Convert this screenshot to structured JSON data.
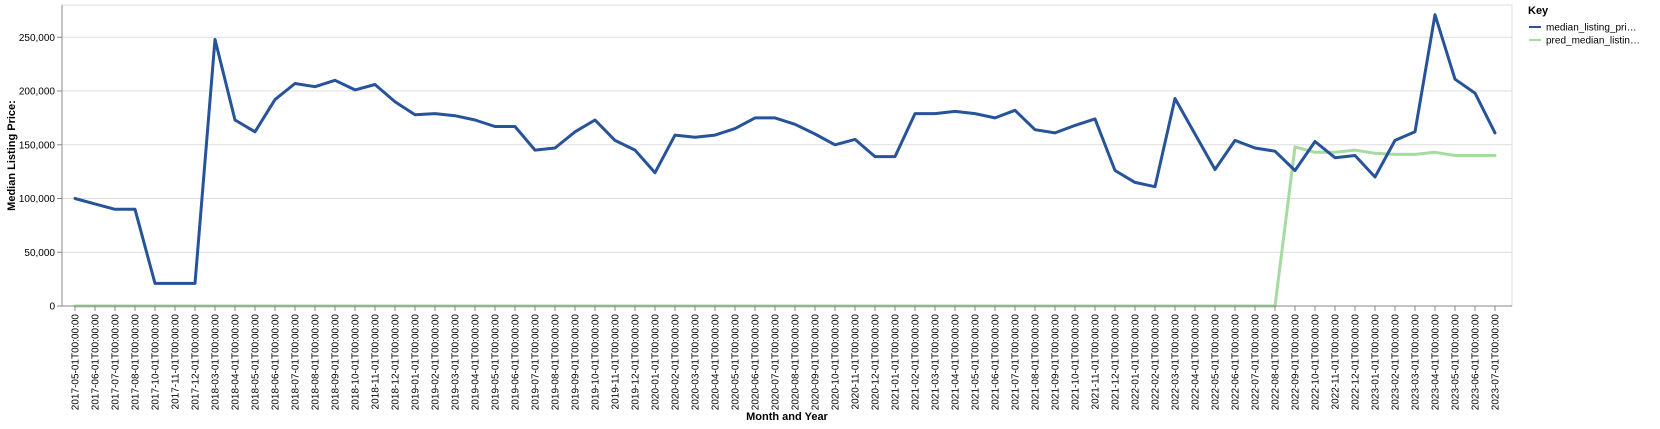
{
  "chart_data": {
    "type": "line",
    "xlabel": "Month and Year",
    "ylabel": "Median Listing Price:",
    "ylim": [
      0,
      280000
    ],
    "yticks": [
      0,
      50000,
      100000,
      150000,
      200000,
      250000
    ],
    "ytick_labels": [
      "0",
      "50,000",
      "100,000",
      "150,000",
      "200,000",
      "250,000"
    ],
    "grid": true,
    "legend": {
      "title": "Key",
      "placement": "top-right"
    },
    "categories": [
      "2017-05-01T00:00:00",
      "2017-06-01T00:00:00",
      "2017-07-01T00:00:00",
      "2017-08-01T00:00:00",
      "2017-10-01T00:00:00",
      "2017-11-01T00:00:00",
      "2017-12-01T00:00:00",
      "2018-03-01T00:00:00",
      "2018-04-01T00:00:00",
      "2018-05-01T00:00:00",
      "2018-06-01T00:00:00",
      "2018-07-01T00:00:00",
      "2018-08-01T00:00:00",
      "2018-09-01T00:00:00",
      "2018-10-01T00:00:00",
      "2018-11-01T00:00:00",
      "2018-12-01T00:00:00",
      "2019-01-01T00:00:00",
      "2019-02-01T00:00:00",
      "2019-03-01T00:00:00",
      "2019-04-01T00:00:00",
      "2019-05-01T00:00:00",
      "2019-06-01T00:00:00",
      "2019-07-01T00:00:00",
      "2019-08-01T00:00:00",
      "2019-09-01T00:00:00",
      "2019-10-01T00:00:00",
      "2019-11-01T00:00:00",
      "2019-12-01T00:00:00",
      "2020-01-01T00:00:00",
      "2020-02-01T00:00:00",
      "2020-03-01T00:00:00",
      "2020-04-01T00:00:00",
      "2020-05-01T00:00:00",
      "2020-06-01T00:00:00",
      "2020-07-01T00:00:00",
      "2020-08-01T00:00:00",
      "2020-09-01T00:00:00",
      "2020-10-01T00:00:00",
      "2020-11-01T00:00:00",
      "2020-12-01T00:00:00",
      "2021-01-01T00:00:00",
      "2021-02-01T00:00:00",
      "2021-03-01T00:00:00",
      "2021-04-01T00:00:00",
      "2021-05-01T00:00:00",
      "2021-06-01T00:00:00",
      "2021-07-01T00:00:00",
      "2021-08-01T00:00:00",
      "2021-09-01T00:00:00",
      "2021-10-01T00:00:00",
      "2021-11-01T00:00:00",
      "2021-12-01T00:00:00",
      "2022-01-01T00:00:00",
      "2022-02-01T00:00:00",
      "2022-03-01T00:00:00",
      "2022-04-01T00:00:00",
      "2022-05-01T00:00:00",
      "2022-06-01T00:00:00",
      "2022-07-01T00:00:00",
      "2022-08-01T00:00:00",
      "2022-09-01T00:00:00",
      "2022-10-01T00:00:00",
      "2022-11-01T00:00:00",
      "2022-12-01T00:00:00",
      "2023-01-01T00:00:00",
      "2023-02-01T00:00:00",
      "2023-03-01T00:00:00",
      "2023-04-01T00:00:00",
      "2023-05-01T00:00:00",
      "2023-06-01T00:00:00",
      "2023-07-01T00:00:00"
    ],
    "series": [
      {
        "name": "median_listing_pri…",
        "color": "#26539a",
        "values": [
          100000,
          95000,
          90000,
          90000,
          21000,
          21000,
          21000,
          248000,
          173000,
          162000,
          192000,
          207000,
          204000,
          210000,
          201000,
          206000,
          190000,
          178000,
          179000,
          177000,
          173000,
          167000,
          167000,
          145000,
          147000,
          162000,
          173000,
          154000,
          145000,
          124000,
          159000,
          157000,
          159000,
          165000,
          175000,
          175000,
          169000,
          160000,
          150000,
          155000,
          139000,
          139000,
          179000,
          179000,
          181000,
          179000,
          175000,
          182000,
          164000,
          161000,
          168000,
          174000,
          126000,
          115000,
          111000,
          193000,
          160000,
          127000,
          154000,
          147000,
          144000,
          126000,
          153000,
          138000,
          140000,
          120000,
          154000,
          162000,
          271000,
          211000,
          198000,
          161000
        ]
      },
      {
        "name": "pred_median_listin…",
        "color": "#a6dba0",
        "values": [
          0,
          0,
          0,
          0,
          0,
          0,
          0,
          0,
          0,
          0,
          0,
          0,
          0,
          0,
          0,
          0,
          0,
          0,
          0,
          0,
          0,
          0,
          0,
          0,
          0,
          0,
          0,
          0,
          0,
          0,
          0,
          0,
          0,
          0,
          0,
          0,
          0,
          0,
          0,
          0,
          0,
          0,
          0,
          0,
          0,
          0,
          0,
          0,
          0,
          0,
          0,
          0,
          0,
          0,
          0,
          0,
          0,
          0,
          0,
          0,
          0,
          148000,
          143000,
          143000,
          145000,
          142000,
          141000,
          141000,
          143000,
          140000,
          140000,
          140000
        ]
      }
    ]
  }
}
